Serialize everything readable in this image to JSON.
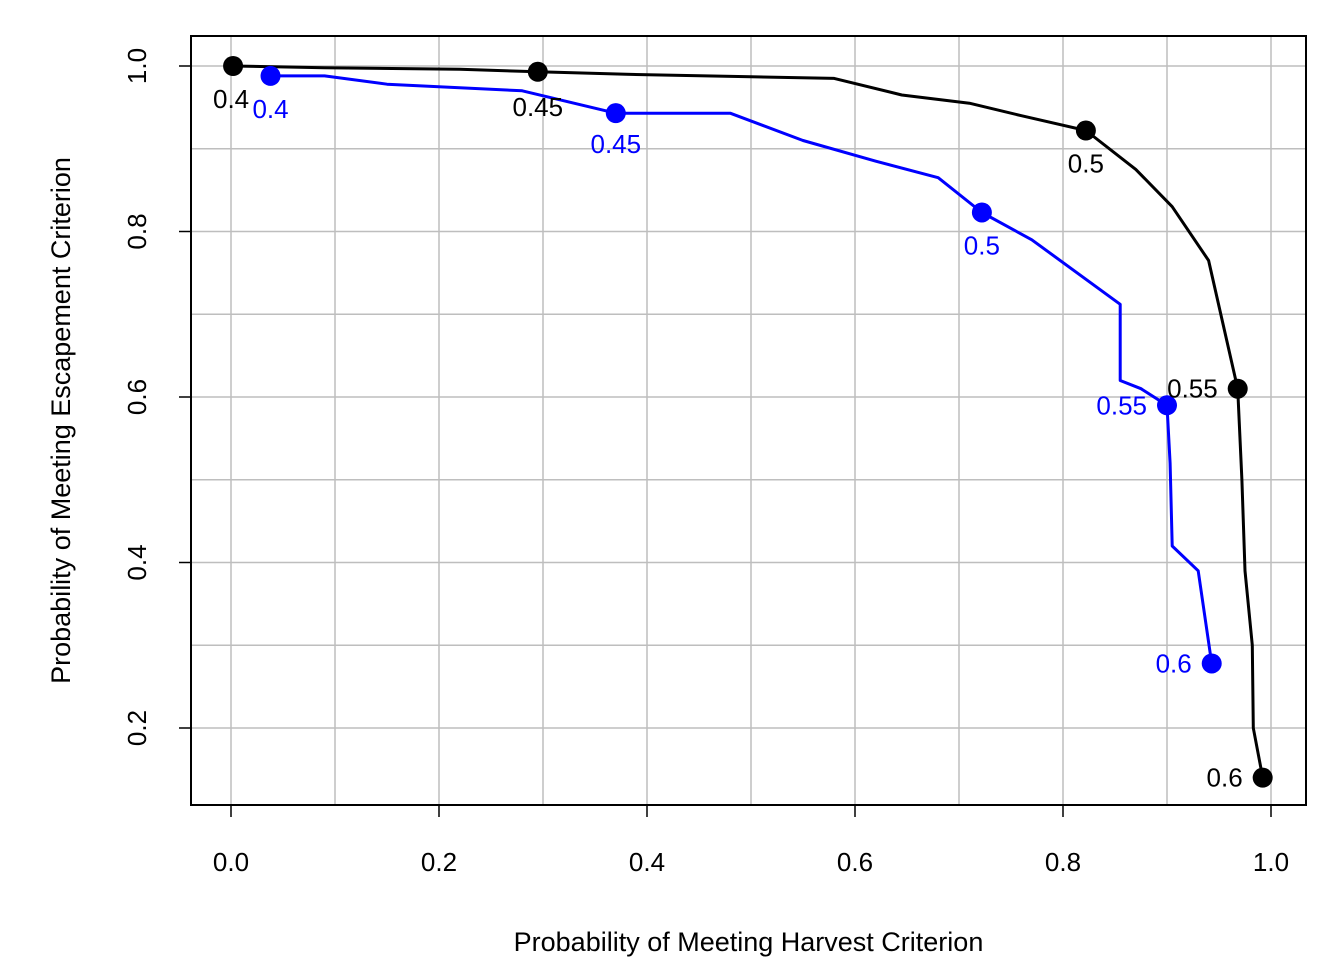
{
  "chart_data": {
    "type": "line",
    "title": "",
    "xlabel": "Probability of Meeting Harvest Criterion",
    "ylabel": "Probability of Meeting Escapement Criterion",
    "xlim": [
      0.0,
      1.0
    ],
    "ylim": [
      0.2,
      1.0
    ],
    "x_ticks": [
      "0.0",
      "0.2",
      "0.4",
      "0.6",
      "0.8",
      "1.0"
    ],
    "y_ticks": [
      "0.2",
      "0.4",
      "0.6",
      "0.8",
      "1.0"
    ],
    "grid": true,
    "legend": "none",
    "colors": {
      "series_black": "#000000",
      "series_blue": "#0000ff",
      "grid": "#bebebe",
      "frame": "#000000"
    },
    "series": [
      {
        "color": "#000000",
        "x": [
          0.002,
          0.09,
          0.22,
          0.295,
          0.38,
          0.5,
          0.58,
          0.645,
          0.71,
          0.76,
          0.822,
          0.87,
          0.905,
          0.94,
          0.968,
          0.972,
          0.975,
          0.982,
          0.983,
          0.992
        ],
        "y": [
          1.0,
          0.998,
          0.996,
          0.993,
          0.99,
          0.987,
          0.985,
          0.965,
          0.955,
          0.94,
          0.922,
          0.875,
          0.83,
          0.765,
          0.61,
          0.5,
          0.39,
          0.3,
          0.2,
          0.14
        ],
        "markers": [
          {
            "x": 0.002,
            "y": 1.0,
            "label": "0.4"
          },
          {
            "x": 0.295,
            "y": 0.993,
            "label": "0.45"
          },
          {
            "x": 0.822,
            "y": 0.922,
            "label": "0.5"
          },
          {
            "x": 0.968,
            "y": 0.61,
            "label": "0.55"
          },
          {
            "x": 0.992,
            "y": 0.14,
            "label": "0.6"
          }
        ]
      },
      {
        "color": "#0000ff",
        "x": [
          0.038,
          0.09,
          0.15,
          0.28,
          0.37,
          0.48,
          0.55,
          0.62,
          0.68,
          0.722,
          0.77,
          0.855,
          0.855,
          0.875,
          0.9,
          0.903,
          0.905,
          0.93,
          0.943
        ],
        "y": [
          0.988,
          0.988,
          0.978,
          0.97,
          0.943,
          0.943,
          0.91,
          0.885,
          0.865,
          0.823,
          0.79,
          0.712,
          0.62,
          0.61,
          0.59,
          0.52,
          0.42,
          0.39,
          0.278
        ],
        "markers": [
          {
            "x": 0.038,
            "y": 0.988,
            "label": "0.4"
          },
          {
            "x": 0.37,
            "y": 0.943,
            "label": "0.45"
          },
          {
            "x": 0.722,
            "y": 0.823,
            "label": "0.5"
          },
          {
            "x": 0.9,
            "y": 0.59,
            "label": "0.55"
          },
          {
            "x": 0.943,
            "y": 0.278,
            "label": "0.6"
          }
        ]
      }
    ]
  }
}
